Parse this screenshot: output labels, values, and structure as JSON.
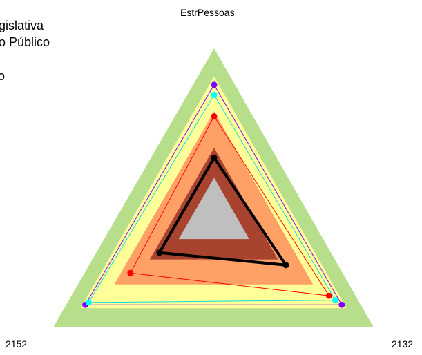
{
  "chart_data": {
    "type": "radar",
    "axes": [
      "EstrPessoas",
      "2132",
      "2152"
    ],
    "bands": [
      {
        "level": 1.0,
        "color": "#b7df8b"
      },
      {
        "level": 0.83,
        "color": "#ffff99"
      },
      {
        "level": 0.62,
        "color": "#ffa066"
      },
      {
        "level": 0.4,
        "color": "#a84330"
      },
      {
        "level": 0.22,
        "color": "#bfbfbf"
      }
    ],
    "series": [
      {
        "values": [
          0.78,
          0.8,
          0.8
        ],
        "color": "#8000ff",
        "marker_color": "#8000ff"
      },
      {
        "values": [
          0.72,
          0.76,
          0.78
        ],
        "color": "#00e0e0",
        "marker_color": "#00ffff"
      },
      {
        "values": [
          0.59,
          0.72,
          0.52
        ],
        "color": "#ff0000",
        "marker_color": "#ff0000"
      },
      {
        "values": [
          0.34,
          0.45,
          0.34
        ],
        "color": "#000000",
        "marker_color": "#000000",
        "bold": true
      }
    ]
  },
  "legend": {
    "lines": [
      "s",
      "egislativa",
      "ão Público",
      "",
      "vo"
    ]
  }
}
